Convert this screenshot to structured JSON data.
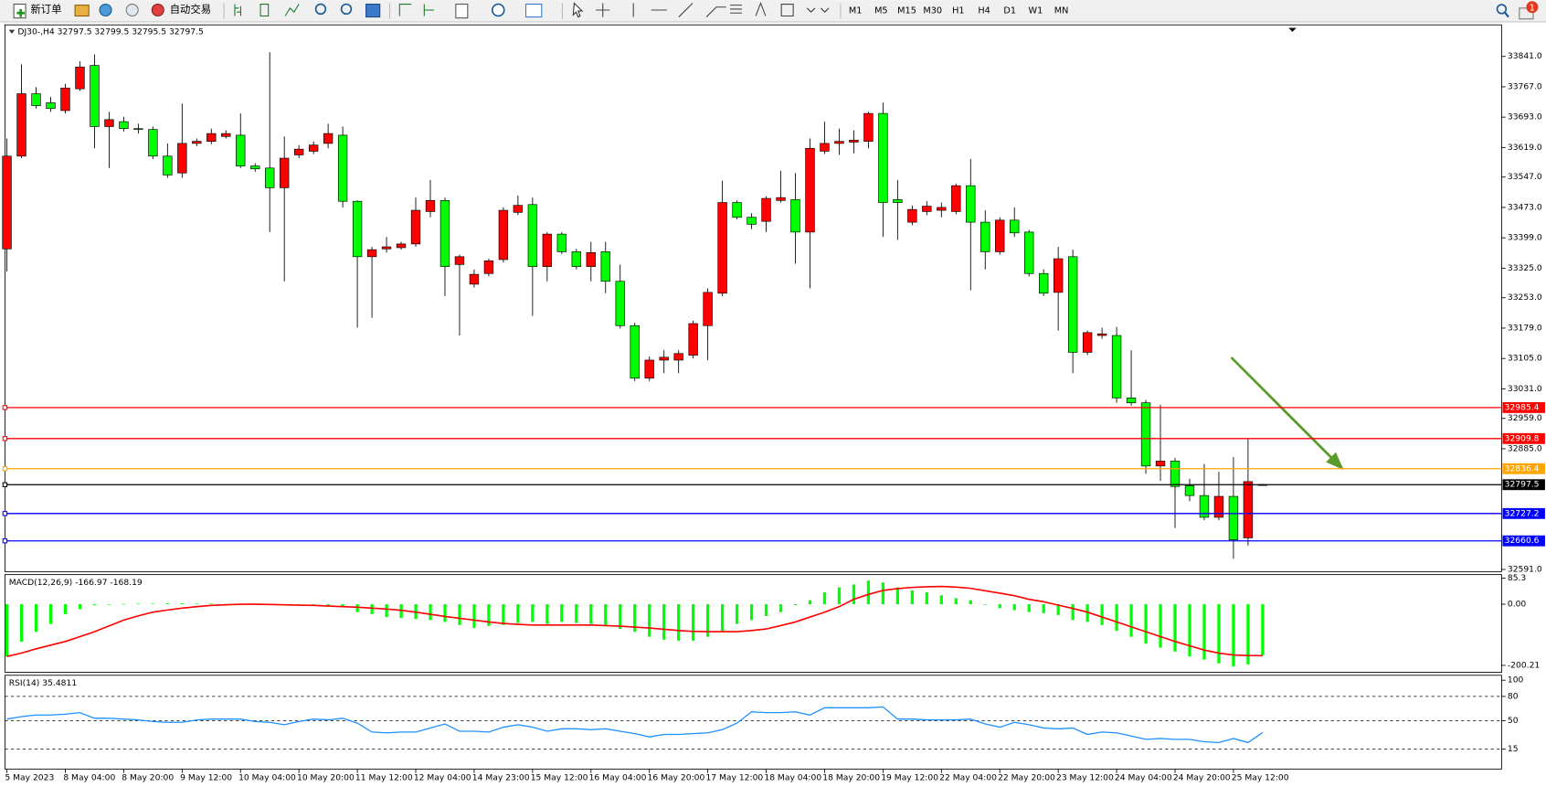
{
  "toolbar": {
    "new_order": "新订单",
    "auto_trading": "自动交易",
    "timeframes": [
      "M1",
      "M5",
      "M15",
      "M30",
      "H1",
      "H4",
      "D1",
      "W1",
      "MN"
    ],
    "notifications": "1"
  },
  "chart_data": [
    {
      "type": "candlestick",
      "title": "DJ30-,H4  32797.5 32799.5 32795.5 32797.5",
      "categories": [
        "5 May 2023",
        null,
        null,
        null,
        "8 May 04:00",
        null,
        null,
        null,
        "8 May 20:00",
        null,
        null,
        null,
        "9 May 12:00",
        null,
        null,
        null,
        "10 May 04:00",
        null,
        null,
        null,
        "10 May 20:00",
        null,
        null,
        null,
        "11 May 12:00",
        null,
        null,
        null,
        "12 May 04:00",
        null,
        null,
        null,
        "14 May 23:00",
        null,
        null,
        null,
        "15 May 12:00",
        null,
        null,
        null,
        "16 May 04:00",
        null,
        null,
        null,
        "16 May 20:00",
        null,
        null,
        null,
        "17 May 12:00",
        null,
        null,
        null,
        "18 May 04:00",
        null,
        null,
        null,
        "18 May 20:00",
        null,
        null,
        null,
        "19 May 12:00",
        null,
        null,
        null,
        "22 May 04:00",
        null,
        null,
        null,
        "22 May 20:00",
        null,
        null,
        null,
        "23 May 12:00",
        null,
        null,
        null,
        "24 May 04:00",
        null,
        null,
        null,
        "24 May 20:00",
        null,
        null,
        null,
        "25 May 12:00",
        null,
        null
      ],
      "open": [
        33372,
        33598,
        33750,
        33728,
        33709,
        33762,
        33819,
        33670,
        33682,
        33665,
        33663,
        33598,
        33557,
        33629,
        33634,
        33646,
        33649,
        33574,
        33569,
        33521,
        33601,
        33610,
        33629,
        33649,
        33488,
        33353,
        33372,
        33375,
        33384,
        33463,
        33490,
        33334,
        33286,
        33312,
        33346,
        33461,
        33480,
        33329,
        33408,
        33365,
        33329,
        33365,
        33293,
        33185,
        33057,
        33101,
        33101,
        33113,
        33185,
        33264,
        33485,
        33449,
        33439,
        33490,
        33492,
        33413,
        33610,
        33629,
        33632,
        33634,
        33702,
        33492,
        33437,
        33463,
        33466,
        33463,
        33526,
        33437,
        33365,
        33442,
        33413,
        33312,
        33266,
        33353,
        33120,
        33161,
        33161,
        33009,
        32997,
        32843,
        32855,
        32795,
        32771,
        32718,
        32769,
        32668,
        32797.5
      ],
      "high": [
        33641,
        33822,
        33766,
        33742,
        33774,
        33829,
        33846,
        33706,
        33694,
        33677,
        33670,
        33629,
        33726,
        33641,
        33665,
        33661,
        33702,
        33581,
        33851,
        33646,
        33625,
        33634,
        33677,
        33670,
        33490,
        33377,
        33401,
        33389,
        33497,
        33540,
        33497,
        33358,
        33322,
        33348,
        33473,
        33502,
        33497,
        33413,
        33413,
        33372,
        33389,
        33389,
        33334,
        33192,
        33110,
        33125,
        33125,
        33197,
        33276,
        33538,
        33490,
        33459,
        33500,
        33562,
        33557,
        33641,
        33682,
        33665,
        33661,
        33706,
        33728,
        33540,
        33478,
        33488,
        33485,
        33531,
        33591,
        33466,
        33449,
        33473,
        33418,
        33322,
        33377,
        33370,
        33173,
        33180,
        33182,
        33125,
        33004,
        32992,
        32863,
        32812,
        32848,
        32829,
        32865,
        32908,
        32799.5
      ],
      "low": [
        33317,
        33593,
        33714,
        33706,
        33702,
        33757,
        33617,
        33569,
        33658,
        33653,
        33591,
        33545,
        33545,
        33622,
        33627,
        33641,
        33569,
        33560,
        33413,
        33293,
        33593,
        33603,
        33617,
        33473,
        33180,
        33204,
        33363,
        33370,
        33377,
        33449,
        33257,
        33161,
        33278,
        33305,
        33339,
        33454,
        33209,
        33293,
        33360,
        33322,
        33293,
        33264,
        33178,
        33050,
        33050,
        33069,
        33069,
        33105,
        33101,
        33257,
        33444,
        33420,
        33413,
        33485,
        33336,
        33276,
        33603,
        33601,
        33605,
        33617,
        33401,
        33394,
        33430,
        33454,
        33449,
        33456,
        33271,
        33322,
        33358,
        33401,
        33305,
        33257,
        33173,
        33069,
        33113,
        33153,
        32997,
        32990,
        32824,
        32807,
        32692,
        32757,
        32711,
        32711,
        32617,
        32649,
        32795.5
      ],
      "close": [
        33598,
        33750,
        33721,
        33714,
        33764,
        33815,
        33670,
        33687,
        33665,
        33663,
        33598,
        33552,
        33629,
        33634,
        33653,
        33653,
        33574,
        33567,
        33521,
        33593,
        33615,
        33625,
        33653,
        33488,
        33353,
        33370,
        33377,
        33384,
        33466,
        33490,
        33329,
        33353,
        33310,
        33343,
        33466,
        33478,
        33329,
        33408,
        33365,
        33329,
        33363,
        33293,
        33185,
        33057,
        33101,
        33108,
        33117,
        33190,
        33266,
        33485,
        33449,
        33432,
        33495,
        33497,
        33413,
        33617,
        33629,
        33634,
        33637,
        33702,
        33485,
        33485,
        33468,
        33476,
        33473,
        33526,
        33437,
        33365,
        33442,
        33411,
        33312,
        33264,
        33348,
        33120,
        33168,
        33165,
        33009,
        32997,
        32843,
        32855,
        32793,
        32771,
        32718,
        32769,
        32663,
        32805,
        32797.5
      ],
      "up_color": "#ff0000",
      "down_color": "#00ff00",
      "ylim": [
        32588,
        33913
      ],
      "yticks": [
        {
          "value": 33841,
          "label": "33841.0"
        },
        {
          "value": 33767,
          "label": "33767.0"
        },
        {
          "value": 33693,
          "label": "33693.0"
        },
        {
          "value": 33619,
          "label": "33619.0"
        },
        {
          "value": 33547,
          "label": "33547.0"
        },
        {
          "value": 33473,
          "label": "33473.0"
        },
        {
          "value": 33399,
          "label": "33399.0"
        },
        {
          "value": 33325,
          "label": "33325.0"
        },
        {
          "value": 33253,
          "label": "33253.0"
        },
        {
          "value": 33179,
          "label": "33179.0"
        },
        {
          "value": 33105,
          "label": "33105.0"
        },
        {
          "value": 33031,
          "label": "33031.0"
        },
        {
          "value": 32959,
          "label": "32959.0"
        },
        {
          "value": 32885,
          "label": "32885.0"
        },
        {
          "value": 32591,
          "label": "32591.0"
        }
      ],
      "hlines": [
        {
          "value": 32985.4,
          "color": "#ff0000"
        },
        {
          "value": 32909.8,
          "color": "#ff0000"
        },
        {
          "value": 32836.4,
          "color": "#ffa500"
        },
        {
          "value": 32727.2,
          "color": "#0000ff"
        },
        {
          "value": 32660.6,
          "color": "#0000ff"
        },
        {
          "value": 32797.5,
          "color": "#000000"
        }
      ]
    },
    {
      "type": "macd",
      "title": "MACD(12,26,9) -166.97 -168.19",
      "series": [
        {
          "color": "#00ff00",
          "values": [
            -171.1,
            -122.7,
            -90.4,
            -64.6,
            -32.3,
            -16.1,
            -3.2,
            -1,
            1,
            2,
            2,
            3,
            3,
            2,
            2,
            1,
            1,
            0,
            -1,
            -2,
            -3,
            -3,
            -4,
            -6,
            -25.8,
            -32.3,
            -42,
            -45.2,
            -48.4,
            -51.7,
            -58.1,
            -67.8,
            -77.5,
            -71,
            -67.8,
            -61.4,
            -58.1,
            -64.6,
            -58.1,
            -61.4,
            -64.6,
            -67.8,
            -80.7,
            -90.4,
            -106.6,
            -116.2,
            -119.4,
            -119.4,
            -106.6,
            -90.4,
            -64.6,
            -51.7,
            -38.7,
            -25.8,
            -3.2,
            12.9,
            38.7,
            54.9,
            64.6,
            77.5,
            71,
            54.9,
            45.2,
            38.7,
            29.1,
            19.4,
            12.9,
            0,
            -12.9,
            -19.4,
            -25.8,
            -29.1,
            -35.5,
            -51.7,
            -58.1,
            -67.8,
            -87.2,
            -106.6,
            -129.2,
            -142.1,
            -155,
            -171.1,
            -180.8,
            -193.7,
            -203.4,
            -197,
            -166.97
          ]
        },
        {
          "color": "#ff0000",
          "values": [
            -171,
            -160,
            -146,
            -134,
            -122,
            -106,
            -90,
            -71,
            -52,
            -38,
            -26,
            -19,
            -13,
            -8,
            -4,
            -2,
            0,
            0,
            -1,
            -2,
            -3,
            -4,
            -6,
            -8,
            -10,
            -13,
            -16,
            -20,
            -26,
            -33,
            -40,
            -46,
            -52,
            -58,
            -63,
            -66,
            -68,
            -68,
            -68,
            -68,
            -68,
            -70,
            -72,
            -75,
            -78,
            -82,
            -86,
            -89,
            -90,
            -90,
            -90,
            -86,
            -81,
            -70,
            -58,
            -42,
            -26,
            -8,
            16,
            32,
            45,
            51,
            55,
            57,
            58,
            56,
            52,
            44,
            36,
            28,
            16,
            8,
            -3,
            -14,
            -26,
            -42,
            -58,
            -74,
            -90,
            -106,
            -122,
            -136,
            -150,
            -160,
            -166,
            -168,
            -168.19
          ]
        }
      ],
      "ylim": [
        -219.6,
        93.6
      ],
      "yticks": [
        85.3,
        {
          "value": 0,
          "label": "0.00"
        },
        -200.21
      ]
    },
    {
      "type": "line",
      "title": "RSI(14) 35.4811",
      "color": "#1e90ff",
      "values": [
        52,
        55,
        57,
        57,
        58,
        60,
        53,
        53,
        52,
        51,
        49,
        48,
        48,
        51,
        52,
        52,
        52,
        49,
        48,
        45,
        49,
        52,
        51,
        53,
        47,
        36,
        35,
        36,
        36,
        41,
        46,
        37,
        37,
        36,
        42,
        45,
        42,
        37,
        40,
        40,
        39,
        40,
        37,
        34,
        30,
        33,
        33,
        34,
        35,
        39,
        47,
        61,
        60,
        60,
        61,
        57,
        66,
        66,
        66,
        66,
        67,
        52,
        52,
        51,
        51,
        51,
        52,
        46,
        42,
        48,
        45,
        41,
        40,
        41,
        33,
        36,
        35,
        31,
        27,
        28,
        27,
        27,
        24,
        23,
        28,
        23,
        35.4811
      ],
      "ylim": [
        -8.5,
        104.9
      ],
      "yticks": [
        100,
        80,
        50,
        15
      ],
      "levels": [
        80,
        50,
        15
      ]
    }
  ]
}
